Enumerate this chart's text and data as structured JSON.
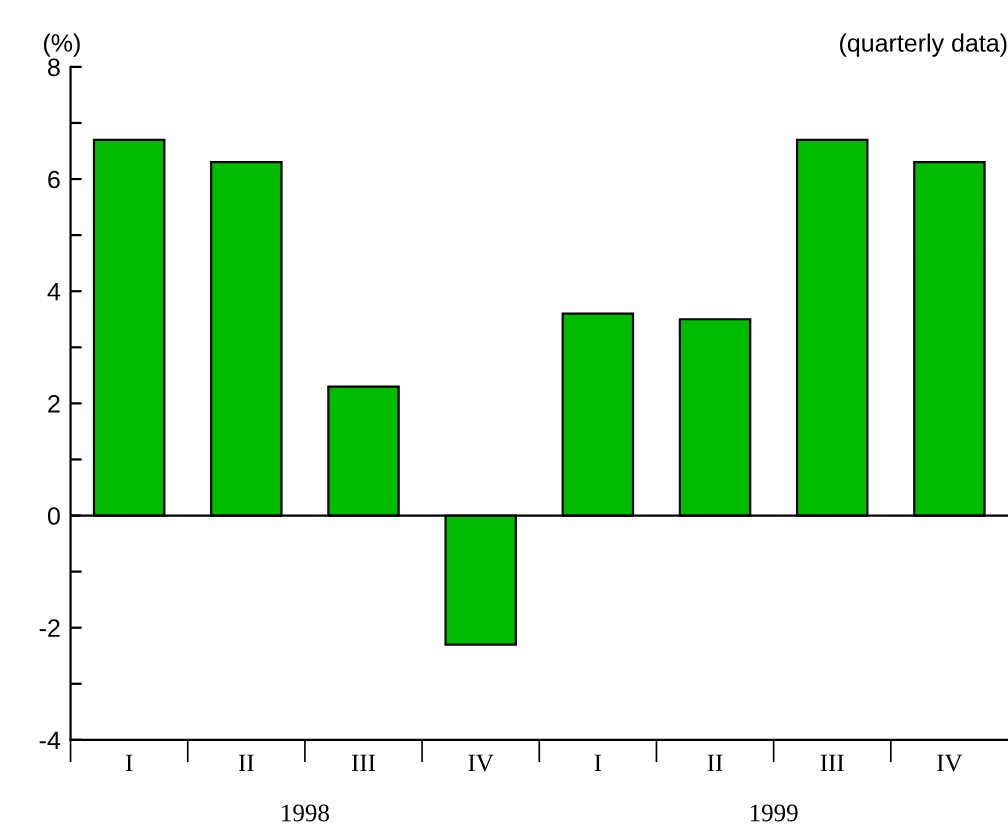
{
  "chart_data": {
    "type": "bar",
    "ylabel": "(%)",
    "categories": [
      "I",
      "II",
      "III",
      "IV",
      "I",
      "II",
      "III",
      "IV"
    ],
    "values": [
      6.7,
      6.3,
      2.3,
      -2.3,
      3.6,
      3.5,
      6.7,
      6.3
    ],
    "color": "#00bb00",
    "ylim": [
      -4,
      8
    ],
    "yticks": [
      -4,
      {
        "value": -3,
        "label": null
      },
      -2,
      {
        "value": -1,
        "label": null
      },
      0,
      {
        "value": 1,
        "label": null
      },
      2,
      {
        "value": 3,
        "label": null
      },
      4,
      {
        "value": 5,
        "label": null
      },
      6,
      {
        "value": 7,
        "label": null
      },
      8
    ],
    "ref_lines": [
      {
        "axis": "y",
        "value": 0,
        "color": "#000000"
      }
    ],
    "annotations": [
      "(quarterly data)",
      {
        "text": "1998"
      },
      {
        "text": "1999"
      }
    ],
    "grid": false,
    "legend": false
  }
}
